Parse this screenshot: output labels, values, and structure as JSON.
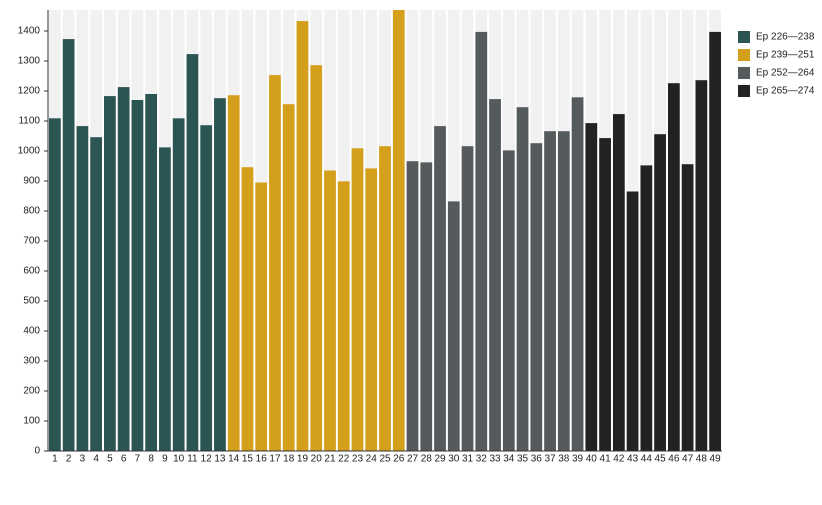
{
  "chart_data": {
    "type": "bar",
    "categories": [
      "1",
      "2",
      "3",
      "4",
      "5",
      "6",
      "7",
      "8",
      "9",
      "10",
      "11",
      "12",
      "13",
      "14",
      "15",
      "16",
      "17",
      "18",
      "19",
      "20",
      "21",
      "22",
      "23",
      "24",
      "25",
      "26",
      "27",
      "28",
      "29",
      "30",
      "31",
      "32",
      "33",
      "34",
      "35",
      "36",
      "37",
      "38",
      "39",
      "40",
      "41",
      "42",
      "43",
      "44",
      "45",
      "46",
      "47",
      "48",
      "49"
    ],
    "series": [
      {
        "name": "Ep 226—238",
        "color": "#2a5553",
        "values": [
          1109,
          1373,
          1083,
          1046,
          1183,
          1213,
          1170,
          1190,
          1012,
          1109,
          1323,
          1086,
          1176,
          null,
          null,
          null,
          null,
          null,
          null,
          null,
          null,
          null,
          null,
          null,
          null,
          null,
          null,
          null,
          null,
          null,
          null,
          null,
          null,
          null,
          null,
          null,
          null,
          null,
          null,
          null,
          null,
          null,
          null,
          null,
          null,
          null,
          null,
          null,
          null
        ]
      },
      {
        "name": "Ep 239—251",
        "color": "#d49f1a",
        "values": [
          null,
          null,
          null,
          null,
          null,
          null,
          null,
          null,
          null,
          null,
          null,
          null,
          null,
          1186,
          946,
          895,
          1253,
          1156,
          1433,
          1286,
          935,
          899,
          1009,
          942,
          1016,
          1470,
          null,
          null,
          null,
          null,
          null,
          null,
          null,
          null,
          null,
          null,
          null,
          null,
          null,
          null,
          null,
          null,
          null,
          null,
          null,
          null,
          null,
          null,
          null
        ]
      },
      {
        "name": "Ep 252—264",
        "color": "#555a5c",
        "values": [
          null,
          null,
          null,
          null,
          null,
          null,
          null,
          null,
          null,
          null,
          null,
          null,
          null,
          null,
          null,
          null,
          null,
          null,
          null,
          null,
          null,
          null,
          null,
          null,
          null,
          null,
          966,
          962,
          1083,
          832,
          1016,
          1397,
          1173,
          1002,
          1146,
          1026,
          1066,
          1066,
          1179,
          null,
          null,
          null,
          null,
          null,
          null,
          null,
          null,
          null,
          null
        ]
      },
      {
        "name": "Ep 265—274",
        "color": "#222222",
        "values": [
          null,
          null,
          null,
          null,
          null,
          null,
          null,
          null,
          null,
          null,
          null,
          null,
          null,
          null,
          null,
          null,
          null,
          null,
          null,
          null,
          null,
          null,
          null,
          null,
          null,
          null,
          null,
          null,
          null,
          null,
          null,
          null,
          null,
          null,
          null,
          null,
          null,
          null,
          null,
          1093,
          1043,
          1123,
          865,
          952,
          1056,
          1226,
          956,
          1236,
          1397
        ]
      }
    ],
    "ylim": [
      0,
      1470
    ],
    "yticks": [
      0,
      100,
      200,
      300,
      400,
      500,
      600,
      700,
      800,
      900,
      1000,
      1100,
      1200,
      1300,
      1400
    ],
    "legend": "right"
  }
}
